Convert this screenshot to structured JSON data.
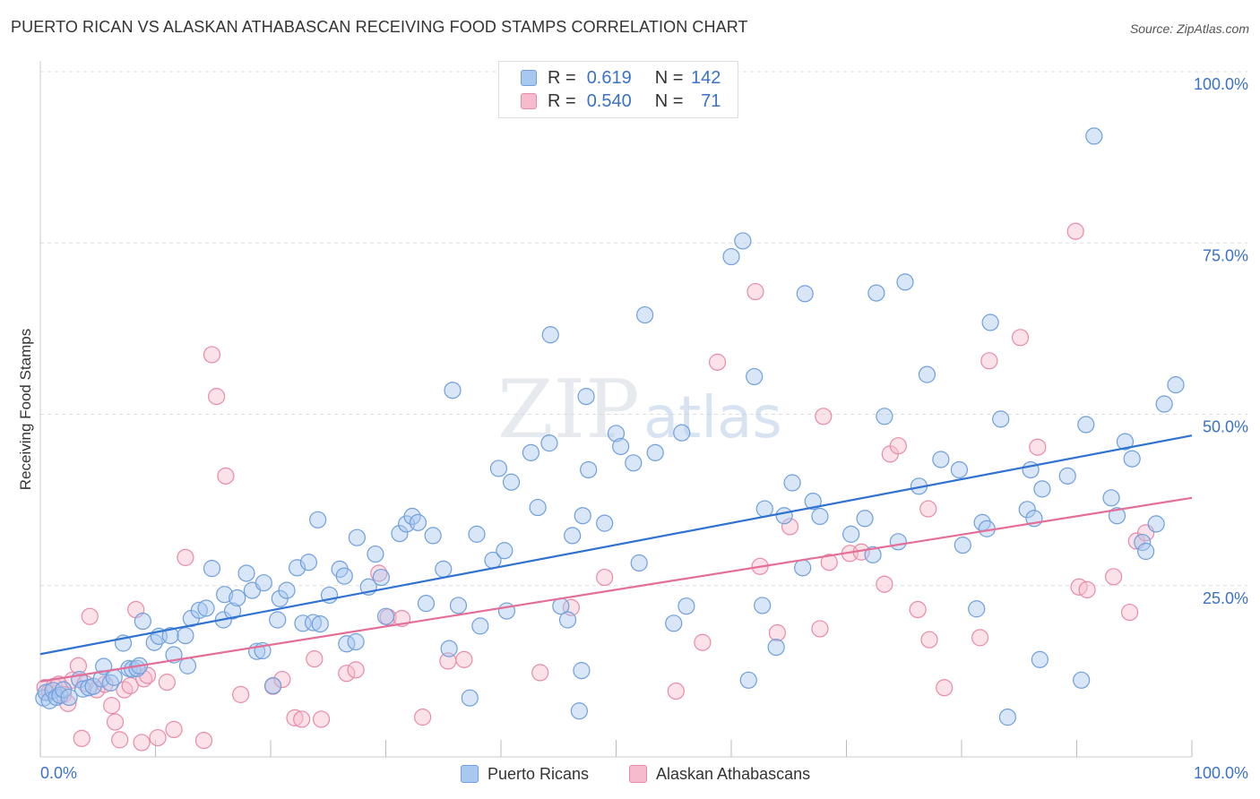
{
  "title": "PUERTO RICAN VS ALASKAN ATHABASCAN RECEIVING FOOD STAMPS CORRELATION CHART",
  "source": "Source: ZipAtlas.com",
  "watermark": {
    "zip": "ZIP",
    "atlas": "atlas"
  },
  "legend": {
    "r_label": "R =",
    "n_label": "N =",
    "rows": [
      {
        "series": "Puerto Ricans",
        "r": "0.619",
        "n": "142"
      },
      {
        "series": "Alaskan Athabascans",
        "r": "0.540",
        "n": "71"
      }
    ]
  },
  "colors": {
    "blue_fill": "#a9c8ef",
    "blue_stroke": "#6f9fdc",
    "blue_line": "#2f72d1",
    "pink_fill": "#f6bccd",
    "pink_stroke": "#e98aa8",
    "pink_line": "#e46e97",
    "value_text": "#3a72c9",
    "grid": "#dddddd"
  },
  "chart_data": {
    "type": "scatter",
    "ylabel": "Receiving Food Stamps",
    "xlabel": "",
    "xlim": [
      0,
      100
    ],
    "ylim": [
      0,
      100
    ],
    "x_tick_labels": [
      "0.0%",
      "100.0%"
    ],
    "y_tick_labels": [
      {
        "value": 25,
        "label": "25.0%"
      },
      {
        "value": 50,
        "label": "50.0%"
      },
      {
        "value": 75,
        "label": "75.0%"
      },
      {
        "value": 100,
        "label": "100.0%"
      }
    ],
    "grid": true,
    "legend_position": "top-center",
    "series": [
      {
        "name": "Puerto Ricans",
        "trend": {
          "x": [
            0,
            100
          ],
          "y": [
            15.0,
            46.9
          ]
        },
        "points": [
          [
            0.3,
            8.6
          ],
          [
            0.5,
            9.4
          ],
          [
            0.8,
            8.2
          ],
          [
            1.1,
            9.7
          ],
          [
            1.4,
            8.7
          ],
          [
            1.7,
            9.0
          ],
          [
            2.0,
            9.8
          ],
          [
            2.5,
            8.7
          ],
          [
            3.4,
            11.3
          ],
          [
            3.7,
            9.9
          ],
          [
            4.2,
            10.1
          ],
          [
            4.6,
            10.3
          ],
          [
            5.3,
            11.4
          ],
          [
            5.5,
            13.2
          ],
          [
            6.1,
            10.8
          ],
          [
            6.4,
            11.6
          ],
          [
            7.2,
            16.6
          ],
          [
            7.7,
            12.9
          ],
          [
            8.0,
            12.8
          ],
          [
            8.4,
            12.9
          ],
          [
            8.6,
            13.3
          ],
          [
            8.9,
            19.8
          ],
          [
            9.9,
            16.7
          ],
          [
            10.3,
            17.6
          ],
          [
            11.3,
            17.7
          ],
          [
            11.6,
            14.9
          ],
          [
            12.6,
            17.7
          ],
          [
            12.8,
            13.3
          ],
          [
            13.1,
            20.2
          ],
          [
            13.8,
            21.4
          ],
          [
            14.4,
            21.7
          ],
          [
            14.9,
            27.5
          ],
          [
            15.9,
            20.0
          ],
          [
            16.0,
            23.7
          ],
          [
            16.7,
            21.3
          ],
          [
            17.1,
            23.2
          ],
          [
            17.9,
            26.8
          ],
          [
            18.4,
            24.3
          ],
          [
            18.8,
            15.4
          ],
          [
            19.3,
            15.5
          ],
          [
            19.4,
            25.4
          ],
          [
            20.2,
            10.4
          ],
          [
            20.6,
            20.0
          ],
          [
            20.8,
            23.1
          ],
          [
            21.4,
            24.3
          ],
          [
            22.3,
            27.6
          ],
          [
            22.8,
            19.5
          ],
          [
            23.3,
            28.4
          ],
          [
            23.7,
            19.6
          ],
          [
            24.1,
            34.6
          ],
          [
            24.3,
            19.4
          ],
          [
            25.1,
            23.6
          ],
          [
            26.0,
            27.4
          ],
          [
            26.4,
            26.4
          ],
          [
            26.6,
            16.5
          ],
          [
            27.4,
            16.8
          ],
          [
            27.5,
            32.0
          ],
          [
            28.5,
            24.8
          ],
          [
            29.1,
            29.6
          ],
          [
            29.6,
            26.2
          ],
          [
            30.0,
            20.5
          ],
          [
            31.2,
            32.6
          ],
          [
            31.8,
            34.0
          ],
          [
            32.3,
            35.1
          ],
          [
            32.8,
            34.2
          ],
          [
            33.5,
            22.4
          ],
          [
            34.1,
            32.3
          ],
          [
            35.0,
            27.4
          ],
          [
            35.5,
            15.8
          ],
          [
            35.8,
            53.5
          ],
          [
            36.3,
            22.1
          ],
          [
            37.3,
            8.6
          ],
          [
            37.9,
            32.5
          ],
          [
            38.2,
            19.1
          ],
          [
            39.3,
            28.7
          ],
          [
            39.8,
            42.1
          ],
          [
            40.3,
            30.1
          ],
          [
            40.5,
            21.3
          ],
          [
            40.9,
            40.1
          ],
          [
            42.6,
            44.4
          ],
          [
            43.2,
            36.4
          ],
          [
            44.2,
            45.8
          ],
          [
            44.3,
            61.6
          ],
          [
            45.2,
            22.0
          ],
          [
            45.8,
            20.0
          ],
          [
            46.2,
            32.3
          ],
          [
            46.8,
            6.7
          ],
          [
            47.0,
            12.6
          ],
          [
            47.1,
            35.2
          ],
          [
            47.4,
            52.6
          ],
          [
            47.6,
            41.9
          ],
          [
            49.0,
            34.1
          ],
          [
            50.0,
            47.2
          ],
          [
            50.4,
            45.3
          ],
          [
            51.5,
            42.9
          ],
          [
            52.0,
            28.3
          ],
          [
            52.5,
            64.5
          ],
          [
            53.4,
            44.4
          ],
          [
            55.0,
            19.5
          ],
          [
            55.7,
            47.3
          ],
          [
            56.1,
            22.0
          ],
          [
            61.0,
            75.3
          ],
          [
            60.0,
            73.0
          ],
          [
            61.5,
            11.2
          ],
          [
            62.0,
            55.5
          ],
          [
            62.7,
            22.1
          ],
          [
            62.9,
            36.2
          ],
          [
            63.9,
            16.0
          ],
          [
            64.6,
            35.2
          ],
          [
            65.3,
            40.0
          ],
          [
            66.4,
            67.6
          ],
          [
            66.2,
            27.6
          ],
          [
            67.1,
            37.3
          ],
          [
            67.7,
            35.1
          ],
          [
            70.4,
            32.5
          ],
          [
            71.6,
            34.8
          ],
          [
            72.3,
            29.5
          ],
          [
            72.6,
            67.7
          ],
          [
            73.3,
            49.7
          ],
          [
            74.5,
            31.4
          ],
          [
            75.1,
            69.3
          ],
          [
            76.3,
            39.5
          ],
          [
            77.0,
            55.8
          ],
          [
            78.2,
            43.4
          ],
          [
            79.8,
            41.9
          ],
          [
            80.1,
            30.9
          ],
          [
            81.3,
            21.6
          ],
          [
            81.8,
            34.2
          ],
          [
            82.2,
            33.3
          ],
          [
            82.5,
            63.4
          ],
          [
            83.4,
            49.3
          ],
          [
            84.0,
            5.8
          ],
          [
            85.7,
            36.1
          ],
          [
            86.0,
            41.9
          ],
          [
            86.3,
            34.8
          ],
          [
            86.8,
            14.2
          ],
          [
            87.0,
            39.1
          ],
          [
            89.2,
            41.0
          ],
          [
            90.4,
            11.2
          ],
          [
            90.8,
            48.5
          ],
          [
            91.5,
            90.6
          ],
          [
            93.0,
            37.8
          ],
          [
            93.5,
            35.2
          ],
          [
            94.2,
            46.0
          ],
          [
            94.8,
            43.5
          ],
          [
            95.7,
            31.3
          ],
          [
            96.0,
            30.0
          ],
          [
            96.9,
            34.0
          ],
          [
            97.6,
            51.5
          ],
          [
            98.6,
            54.3
          ]
        ]
      },
      {
        "name": "Alaskan Athabascans",
        "trend": {
          "x": [
            0,
            100
          ],
          "y": [
            11.0,
            37.8
          ]
        },
        "points": [
          [
            0.4,
            10.1
          ],
          [
            0.8,
            9.5
          ],
          [
            1.2,
            10.3
          ],
          [
            1.6,
            10.6
          ],
          [
            2.0,
            9.1
          ],
          [
            2.4,
            7.8
          ],
          [
            2.8,
            11.2
          ],
          [
            3.3,
            13.3
          ],
          [
            3.6,
            2.7
          ],
          [
            3.9,
            10.7
          ],
          [
            4.3,
            20.5
          ],
          [
            4.9,
            9.8
          ],
          [
            5.6,
            10.6
          ],
          [
            6.2,
            7.5
          ],
          [
            6.5,
            5.1
          ],
          [
            6.9,
            2.5
          ],
          [
            7.3,
            9.8
          ],
          [
            7.8,
            10.4
          ],
          [
            8.3,
            21.5
          ],
          [
            8.8,
            2.1
          ],
          [
            9.0,
            11.4
          ],
          [
            9.3,
            11.9
          ],
          [
            10.2,
            2.8
          ],
          [
            11.0,
            10.9
          ],
          [
            11.6,
            4.0
          ],
          [
            12.6,
            29.1
          ],
          [
            14.2,
            2.4
          ],
          [
            14.9,
            58.7
          ],
          [
            15.3,
            52.6
          ],
          [
            16.1,
            41.0
          ],
          [
            17.4,
            9.1
          ],
          [
            20.2,
            10.3
          ],
          [
            21.0,
            11.3
          ],
          [
            22.1,
            5.7
          ],
          [
            22.7,
            5.5
          ],
          [
            23.8,
            14.3
          ],
          [
            24.4,
            5.5
          ],
          [
            26.6,
            12.2
          ],
          [
            27.4,
            12.7
          ],
          [
            29.4,
            26.8
          ],
          [
            30.2,
            20.4
          ],
          [
            31.4,
            20.2
          ],
          [
            33.2,
            5.8
          ],
          [
            35.4,
            14.0
          ],
          [
            36.8,
            14.2
          ],
          [
            43.4,
            12.3
          ],
          [
            46.1,
            21.8
          ],
          [
            49.0,
            26.2
          ],
          [
            55.2,
            9.6
          ],
          [
            57.5,
            16.7
          ],
          [
            58.8,
            57.6
          ],
          [
            62.1,
            67.9
          ],
          [
            62.5,
            27.8
          ],
          [
            64.0,
            18.1
          ],
          [
            65.1,
            33.6
          ],
          [
            67.7,
            18.7
          ],
          [
            68.0,
            49.7
          ],
          [
            68.5,
            28.4
          ],
          [
            70.3,
            29.7
          ],
          [
            71.3,
            29.9
          ],
          [
            73.3,
            25.2
          ],
          [
            73.8,
            44.2
          ],
          [
            74.5,
            45.4
          ],
          [
            76.2,
            21.5
          ],
          [
            77.1,
            36.2
          ],
          [
            77.2,
            17.1
          ],
          [
            78.5,
            10.1
          ],
          [
            81.6,
            17.4
          ],
          [
            82.4,
            57.8
          ],
          [
            85.1,
            61.2
          ],
          [
            86.6,
            45.2
          ],
          [
            89.9,
            76.7
          ],
          [
            90.2,
            24.8
          ],
          [
            90.9,
            24.4
          ],
          [
            93.2,
            26.3
          ],
          [
            94.6,
            21.1
          ],
          [
            95.2,
            31.5
          ],
          [
            96.0,
            32.7
          ]
        ]
      }
    ]
  }
}
